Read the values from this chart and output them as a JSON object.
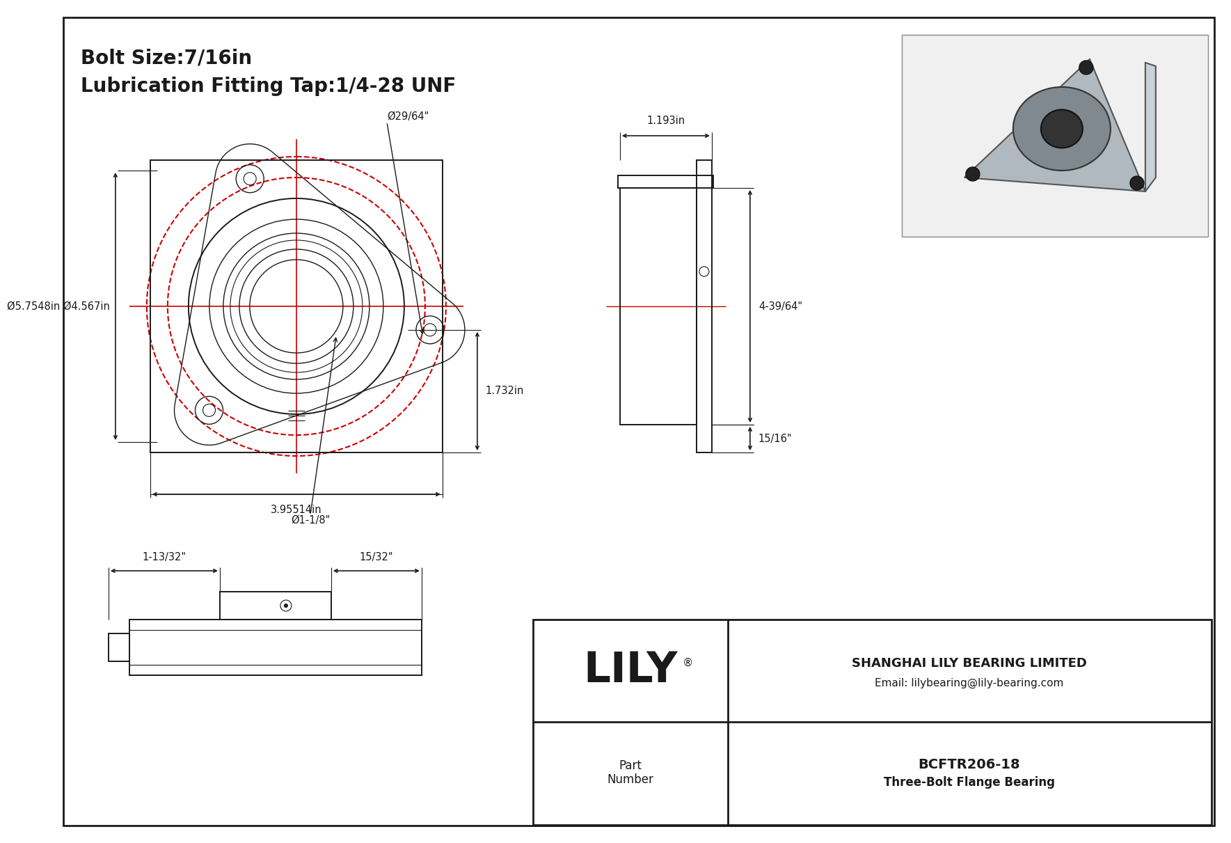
{
  "bg_color": "#ffffff",
  "line_color": "#1a1a1a",
  "red_color": "#cc0000",
  "gray_color": "#888888",
  "dark_gray": "#555555",
  "title_line1": "Bolt Size:7/16in",
  "title_line2": "Lubrication Fitting Tap:1/4-28 UNF",
  "part_number": "BCFTR206-18",
  "part_type": "Three-Bolt Flange Bearing",
  "company": "SHANGHAI LILY BEARING LIMITED",
  "email": "Email: lilybearing@lily-bearing.com",
  "lily_text": "LILY",
  "dim_bolt_circle": "Ø29/64\"",
  "dim_od1": "Ø5.7548in",
  "dim_od2": "Ø4.567in",
  "dim_bore": "Ø1-1/8\"",
  "dim_width": "3.95514in",
  "dim_height": "1.732in",
  "dim_side_width": "1.193in",
  "dim_side_height": "4-39/64\"",
  "dim_side_bottom": "15/16\"",
  "dim_bot_left": "1-13/32\"",
  "dim_bot_right": "15/32\""
}
